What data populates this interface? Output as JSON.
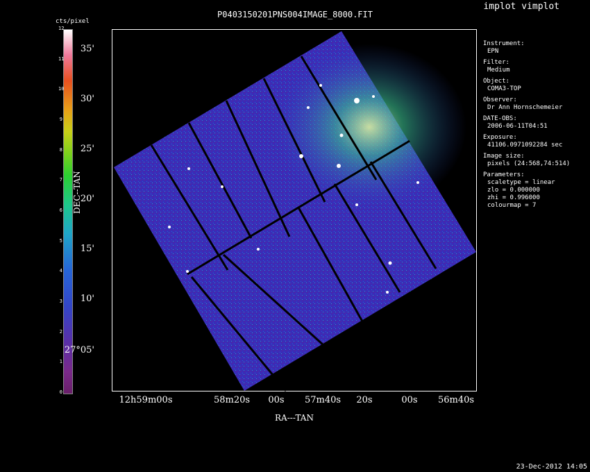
{
  "app_title": "implot vimplot",
  "image_title": "P0403150201PNS004IMAGE_8000.FIT",
  "colorbar": {
    "unit_label": "cts/pixel",
    "ticks": [
      "0",
      "1",
      "2",
      "3",
      "4",
      "5",
      "6",
      "7",
      "8",
      "9",
      "10",
      "11",
      "12"
    ]
  },
  "axes": {
    "y_label": "DEC--TAN",
    "x_label": "RA---TAN",
    "y_ticks": [
      "35'",
      "30'",
      "25'",
      "20'",
      "15'",
      "10'",
      "27°05'"
    ],
    "x_ticks": [
      "12h59m00s",
      "58m20s",
      "00s",
      "57m40s",
      "20s",
      "00s",
      "56m40s"
    ]
  },
  "info": [
    {
      "label": "Instrument:",
      "value": "EPN"
    },
    {
      "label": "Filter:",
      "value": "Medium"
    },
    {
      "label": "Object:",
      "value": "COMA3-TOP"
    },
    {
      "label": "Observer:",
      "value": "Dr Ann Hornschemeier"
    },
    {
      "label": "DATE-OBS:",
      "value": "2006-06-11T04:51"
    },
    {
      "label": "Exposure:",
      "value": "41106.0971092284 sec"
    },
    {
      "label": "Image size:",
      "value": "pixels (24:568,74:514)"
    }
  ],
  "parameters": {
    "label": "Parameters:",
    "lines": [
      "scaletype = linear",
      "zlo = 0.000000",
      "zhi = 0.996000",
      "colourmap = 7"
    ]
  },
  "footer_date": "23-Dec-2012 14:05"
}
